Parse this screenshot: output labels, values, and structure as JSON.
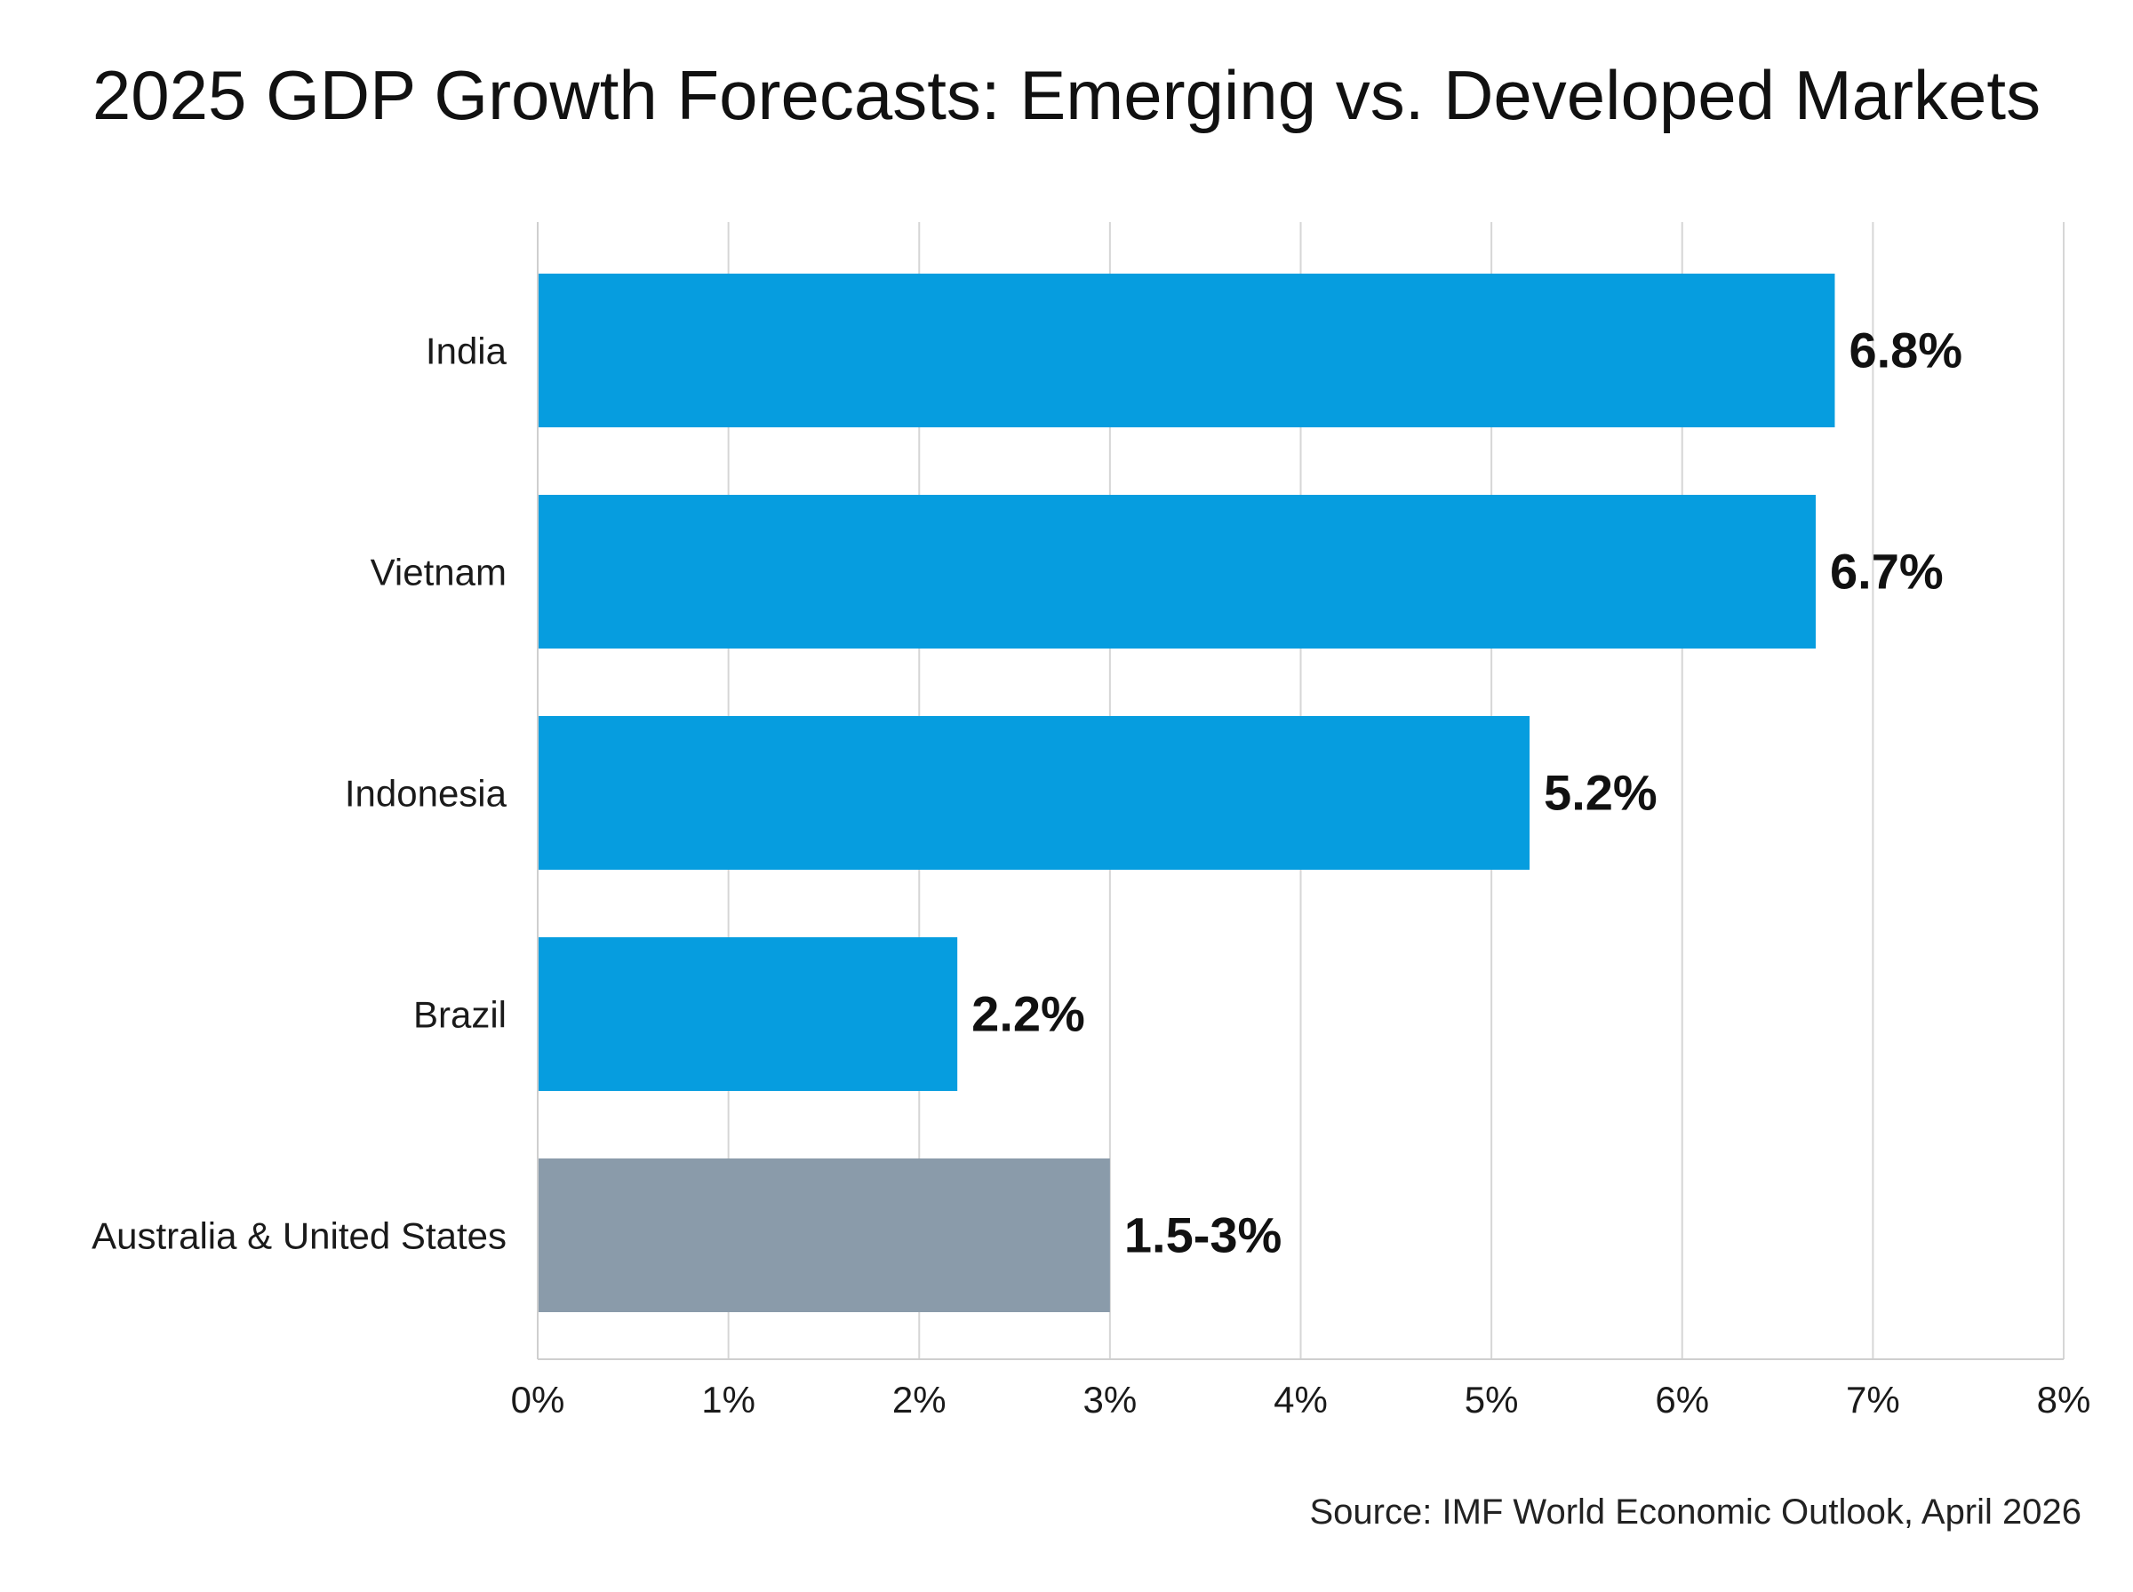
{
  "chart_data": {
    "type": "bar",
    "orientation": "horizontal",
    "title": "2025 GDP Growth Forecasts: Emerging vs. Developed Markets",
    "source": "Source: IMF World Economic Outlook, April 2026",
    "xlabel": "",
    "ylabel": "",
    "xlim": [
      0,
      8
    ],
    "x_ticks": [
      0,
      1,
      2,
      3,
      4,
      5,
      6,
      7,
      8
    ],
    "x_tick_labels": [
      "0%",
      "1%",
      "2%",
      "3%",
      "4%",
      "5%",
      "6%",
      "7%",
      "8%"
    ],
    "grid": "vertical",
    "legend": "none",
    "categories": [
      "India",
      "Vietnam",
      "Indonesia",
      "Brazil",
      "Australia & United States"
    ],
    "values": [
      6.8,
      6.7,
      5.2,
      2.2,
      3.0
    ],
    "value_labels": [
      "6.8%",
      "6.7%",
      "5.2%",
      "2.2%",
      "1.5-3%"
    ],
    "ranges": [
      null,
      null,
      null,
      null,
      [
        1.5,
        3.0
      ]
    ],
    "bar_colors": [
      "#069ddf",
      "#069ddf",
      "#069ddf",
      "#069ddf",
      "#8a9baa"
    ]
  }
}
